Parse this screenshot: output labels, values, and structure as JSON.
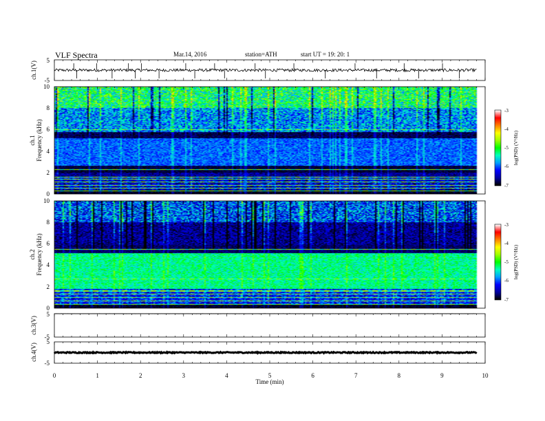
{
  "header": {
    "title": "VLF  Spectra",
    "date": "Mar.14, 2016",
    "station": "station=ATH",
    "start": "start  UT  =    19: 20: 1"
  },
  "chart_data": [
    {
      "type": "line",
      "name": "ch1-waveform",
      "ylabel": "ch.1(V)",
      "ylim": [
        -5,
        5
      ],
      "yticks": [
        "5",
        "-5"
      ],
      "xlim": [
        0,
        10
      ],
      "data_xmax": 9.8,
      "baseline": 0,
      "noise_amplitude": 0.7,
      "spikes": [
        0.45,
        0.52,
        0.98,
        1.34,
        1.72,
        1.88,
        2.02,
        2.43,
        3.05,
        3.26,
        3.72,
        3.95,
        4.66,
        4.9,
        5.56,
        6.29,
        6.98,
        7.48,
        8.12,
        8.46,
        9.01,
        9.4
      ]
    },
    {
      "type": "heatmap",
      "name": "ch1-spectrogram",
      "ylabel_top": "ch.1",
      "ylabel": "Frequency  (kHz)",
      "ylim": [
        0,
        10
      ],
      "yticks": [
        "0",
        "2",
        "4",
        "6",
        "8",
        "10"
      ],
      "xlim": [
        0,
        10
      ],
      "data_xmax": 9.8,
      "colorbar": {
        "label": "log(PSD) (V²/Hz)",
        "range": [
          -7,
          -3
        ],
        "ticks": [
          "-7",
          "-6",
          "-5",
          "-4",
          "-3"
        ]
      },
      "bands": [
        {
          "from": 0.0,
          "to": 0.4,
          "level": -6.9,
          "spread": 0.2
        },
        {
          "from": 0.4,
          "to": 1.6,
          "level": -6.4,
          "spread": 0.5
        },
        {
          "from": 1.6,
          "to": 2.0,
          "level": -6.6,
          "spread": 0.3
        },
        {
          "from": 2.0,
          "to": 2.6,
          "level": -6.85,
          "spread": 0.15
        },
        {
          "from": 2.6,
          "to": 5.2,
          "level": -5.95,
          "spread": 0.3
        },
        {
          "from": 5.2,
          "to": 5.8,
          "level": -6.8,
          "spread": 0.2
        },
        {
          "from": 5.8,
          "to": 8.0,
          "level": -5.8,
          "spread": 0.6
        },
        {
          "from": 8.0,
          "to": 10.0,
          "level": -5.2,
          "spread": 0.7
        }
      ],
      "lines_khz": [
        0.3,
        0.55,
        0.8,
        1.1,
        1.35,
        1.55,
        2.3,
        6.0
      ]
    },
    {
      "type": "heatmap",
      "name": "ch2-spectrogram",
      "ylabel_top": "ch.2",
      "ylabel": "Frequency  (kHz)",
      "ylim": [
        0,
        10
      ],
      "yticks": [
        "0",
        "2",
        "4",
        "6",
        "8",
        "10"
      ],
      "xlim": [
        0,
        10
      ],
      "data_xmax": 9.8,
      "colorbar": {
        "label": "log(PSD) (V²/Hz)",
        "range": [
          -7,
          -3
        ],
        "ticks": [
          "-7",
          "-6",
          "-5",
          "-4",
          "-3"
        ]
      },
      "bands": [
        {
          "from": 0.0,
          "to": 0.4,
          "level": -6.9,
          "spread": 0.2
        },
        {
          "from": 0.4,
          "to": 1.8,
          "level": -6.2,
          "spread": 0.5
        },
        {
          "from": 1.8,
          "to": 5.1,
          "level": -5.3,
          "spread": 0.35
        },
        {
          "from": 5.1,
          "to": 5.9,
          "level": -6.75,
          "spread": 0.2
        },
        {
          "from": 5.9,
          "to": 8.0,
          "level": -6.6,
          "spread": 0.4
        },
        {
          "from": 8.0,
          "to": 10.0,
          "level": -6.0,
          "spread": 0.7
        }
      ],
      "lines_khz": [
        0.35,
        0.7,
        1.0,
        1.3,
        1.6,
        2.7,
        5.5
      ]
    },
    {
      "type": "line",
      "name": "ch3-waveform",
      "ylabel": "ch.3(V)",
      "ylim": [
        -5,
        5
      ],
      "yticks": [
        "5",
        "-5"
      ],
      "xlim": [
        0,
        10
      ],
      "data_xmax": 9.8,
      "baseline": 5,
      "noise_amplitude": 0.05
    },
    {
      "type": "line",
      "name": "ch4-waveform",
      "ylabel": "ch.4(V)",
      "ylim": [
        -5,
        5
      ],
      "yticks": [
        "5",
        "-5"
      ],
      "xlim": [
        0,
        10
      ],
      "data_xmax": 9.8,
      "baseline": 0,
      "noise_amplitude": 0.25
    }
  ],
  "xaxis": {
    "label": "Time  (min)",
    "ticks": [
      "0",
      "1",
      "2",
      "3",
      "4",
      "5",
      "6",
      "7",
      "8",
      "9",
      "10"
    ]
  },
  "colors": {
    "colormap": [
      "#000000",
      "#0000a0",
      "#0000ff",
      "#00a0ff",
      "#00ffc0",
      "#00ff00",
      "#a0ff00",
      "#ffff00",
      "#ff8000",
      "#ff0000",
      "#ffffff"
    ]
  }
}
